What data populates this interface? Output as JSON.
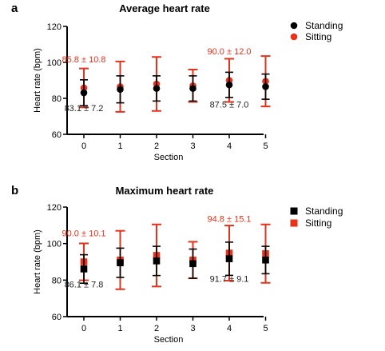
{
  "chart_data": [
    {
      "panel": "a",
      "type": "scatter",
      "title": "Average heart rate",
      "xlabel": "Section",
      "ylabel": "Heart rate (bpm)",
      "categories": [
        "0",
        "1",
        "2",
        "3",
        "4",
        "5"
      ],
      "ylim": [
        60,
        120
      ],
      "yticks": [
        60,
        80,
        100,
        120
      ],
      "legend_position": "top-right",
      "marker": "circle",
      "series": [
        {
          "name": "Standing",
          "color": "#000000",
          "values": [
            83.1,
            85,
            85.5,
            85.5,
            87.5,
            86.5
          ],
          "errors": [
            7.2,
            7.5,
            7,
            7,
            7,
            7
          ]
        },
        {
          "name": "Sitting",
          "color": "#e8311a",
          "values": [
            85.8,
            86.5,
            88,
            87,
            90,
            89.5
          ],
          "errors": [
            10.8,
            14,
            15,
            9,
            12,
            14
          ]
        }
      ],
      "annotations": [
        {
          "text": "85.8 ± 10.8",
          "color": "red",
          "category": "0",
          "y": 100
        },
        {
          "text": "83.1 ± 7.2",
          "color": "black",
          "category": "0",
          "y": 73
        },
        {
          "text": "90.0 ± 12.0",
          "color": "red",
          "category": "4",
          "y": 104.5
        },
        {
          "text": "87.5 ± 7.0",
          "color": "black",
          "category": "4",
          "y": 75
        }
      ]
    },
    {
      "panel": "b",
      "type": "scatter",
      "title": "Maximum heart rate",
      "xlabel": "Section",
      "ylabel": "Heart rate (bpm)",
      "categories": [
        "0",
        "1",
        "2",
        "3",
        "4",
        "5"
      ],
      "ylim": [
        60,
        120
      ],
      "yticks": [
        60,
        80,
        100,
        120
      ],
      "legend_position": "top-right",
      "marker": "square",
      "series": [
        {
          "name": "Standing",
          "color": "#000000",
          "values": [
            86.1,
            89.5,
            90.5,
            89,
            91.7,
            91
          ],
          "errors": [
            7.8,
            8,
            8,
            8,
            9.1,
            7.5
          ]
        },
        {
          "name": "Sitting",
          "color": "#e8311a",
          "values": [
            90.0,
            91,
            93.5,
            91,
            94.8,
            94.5
          ],
          "errors": [
            10.1,
            16,
            17,
            10,
            15.1,
            16
          ]
        }
      ],
      "annotations": [
        {
          "text": "90.0 ± 10.1",
          "color": "red",
          "category": "0",
          "y": 104
        },
        {
          "text": "86.1 ± 7.8",
          "color": "black",
          "category": "0",
          "y": 76
        },
        {
          "text": "94.8 ± 15.1",
          "color": "red",
          "category": "4",
          "y": 112
        },
        {
          "text": "91.7 ± 9.1",
          "color": "black",
          "category": "4",
          "y": 79
        }
      ]
    }
  ]
}
